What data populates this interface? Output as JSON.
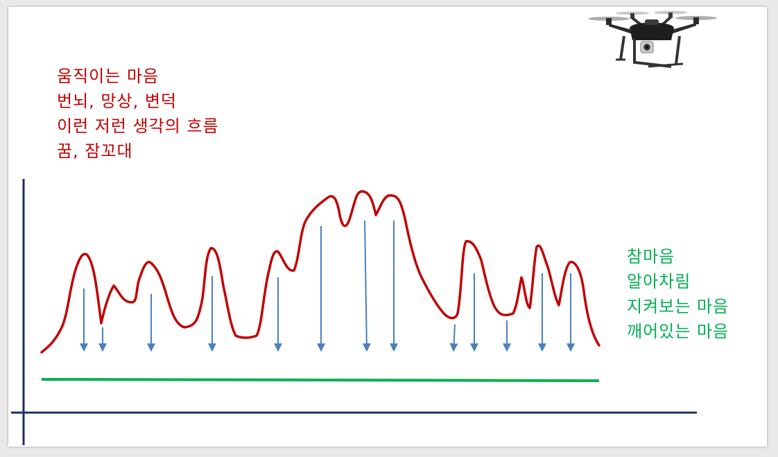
{
  "left_text": {
    "color": "#c00000",
    "lines": [
      "움직이는 마음",
      "번뇌, 망상, 변덕",
      "이런 저런 생각의 흐름",
      "꿈, 잠꼬대"
    ]
  },
  "right_text": {
    "color": "#00b050",
    "lines": [
      "참마음",
      "알아차림",
      "지켜보는 마음",
      "깨어있는 마음"
    ]
  },
  "colors": {
    "wave": "#c00000",
    "baseline": "#00b050",
    "arrows": "#4a7ebf",
    "axes": "#1f2f5f"
  },
  "icons": {
    "drone": "drone-icon"
  }
}
